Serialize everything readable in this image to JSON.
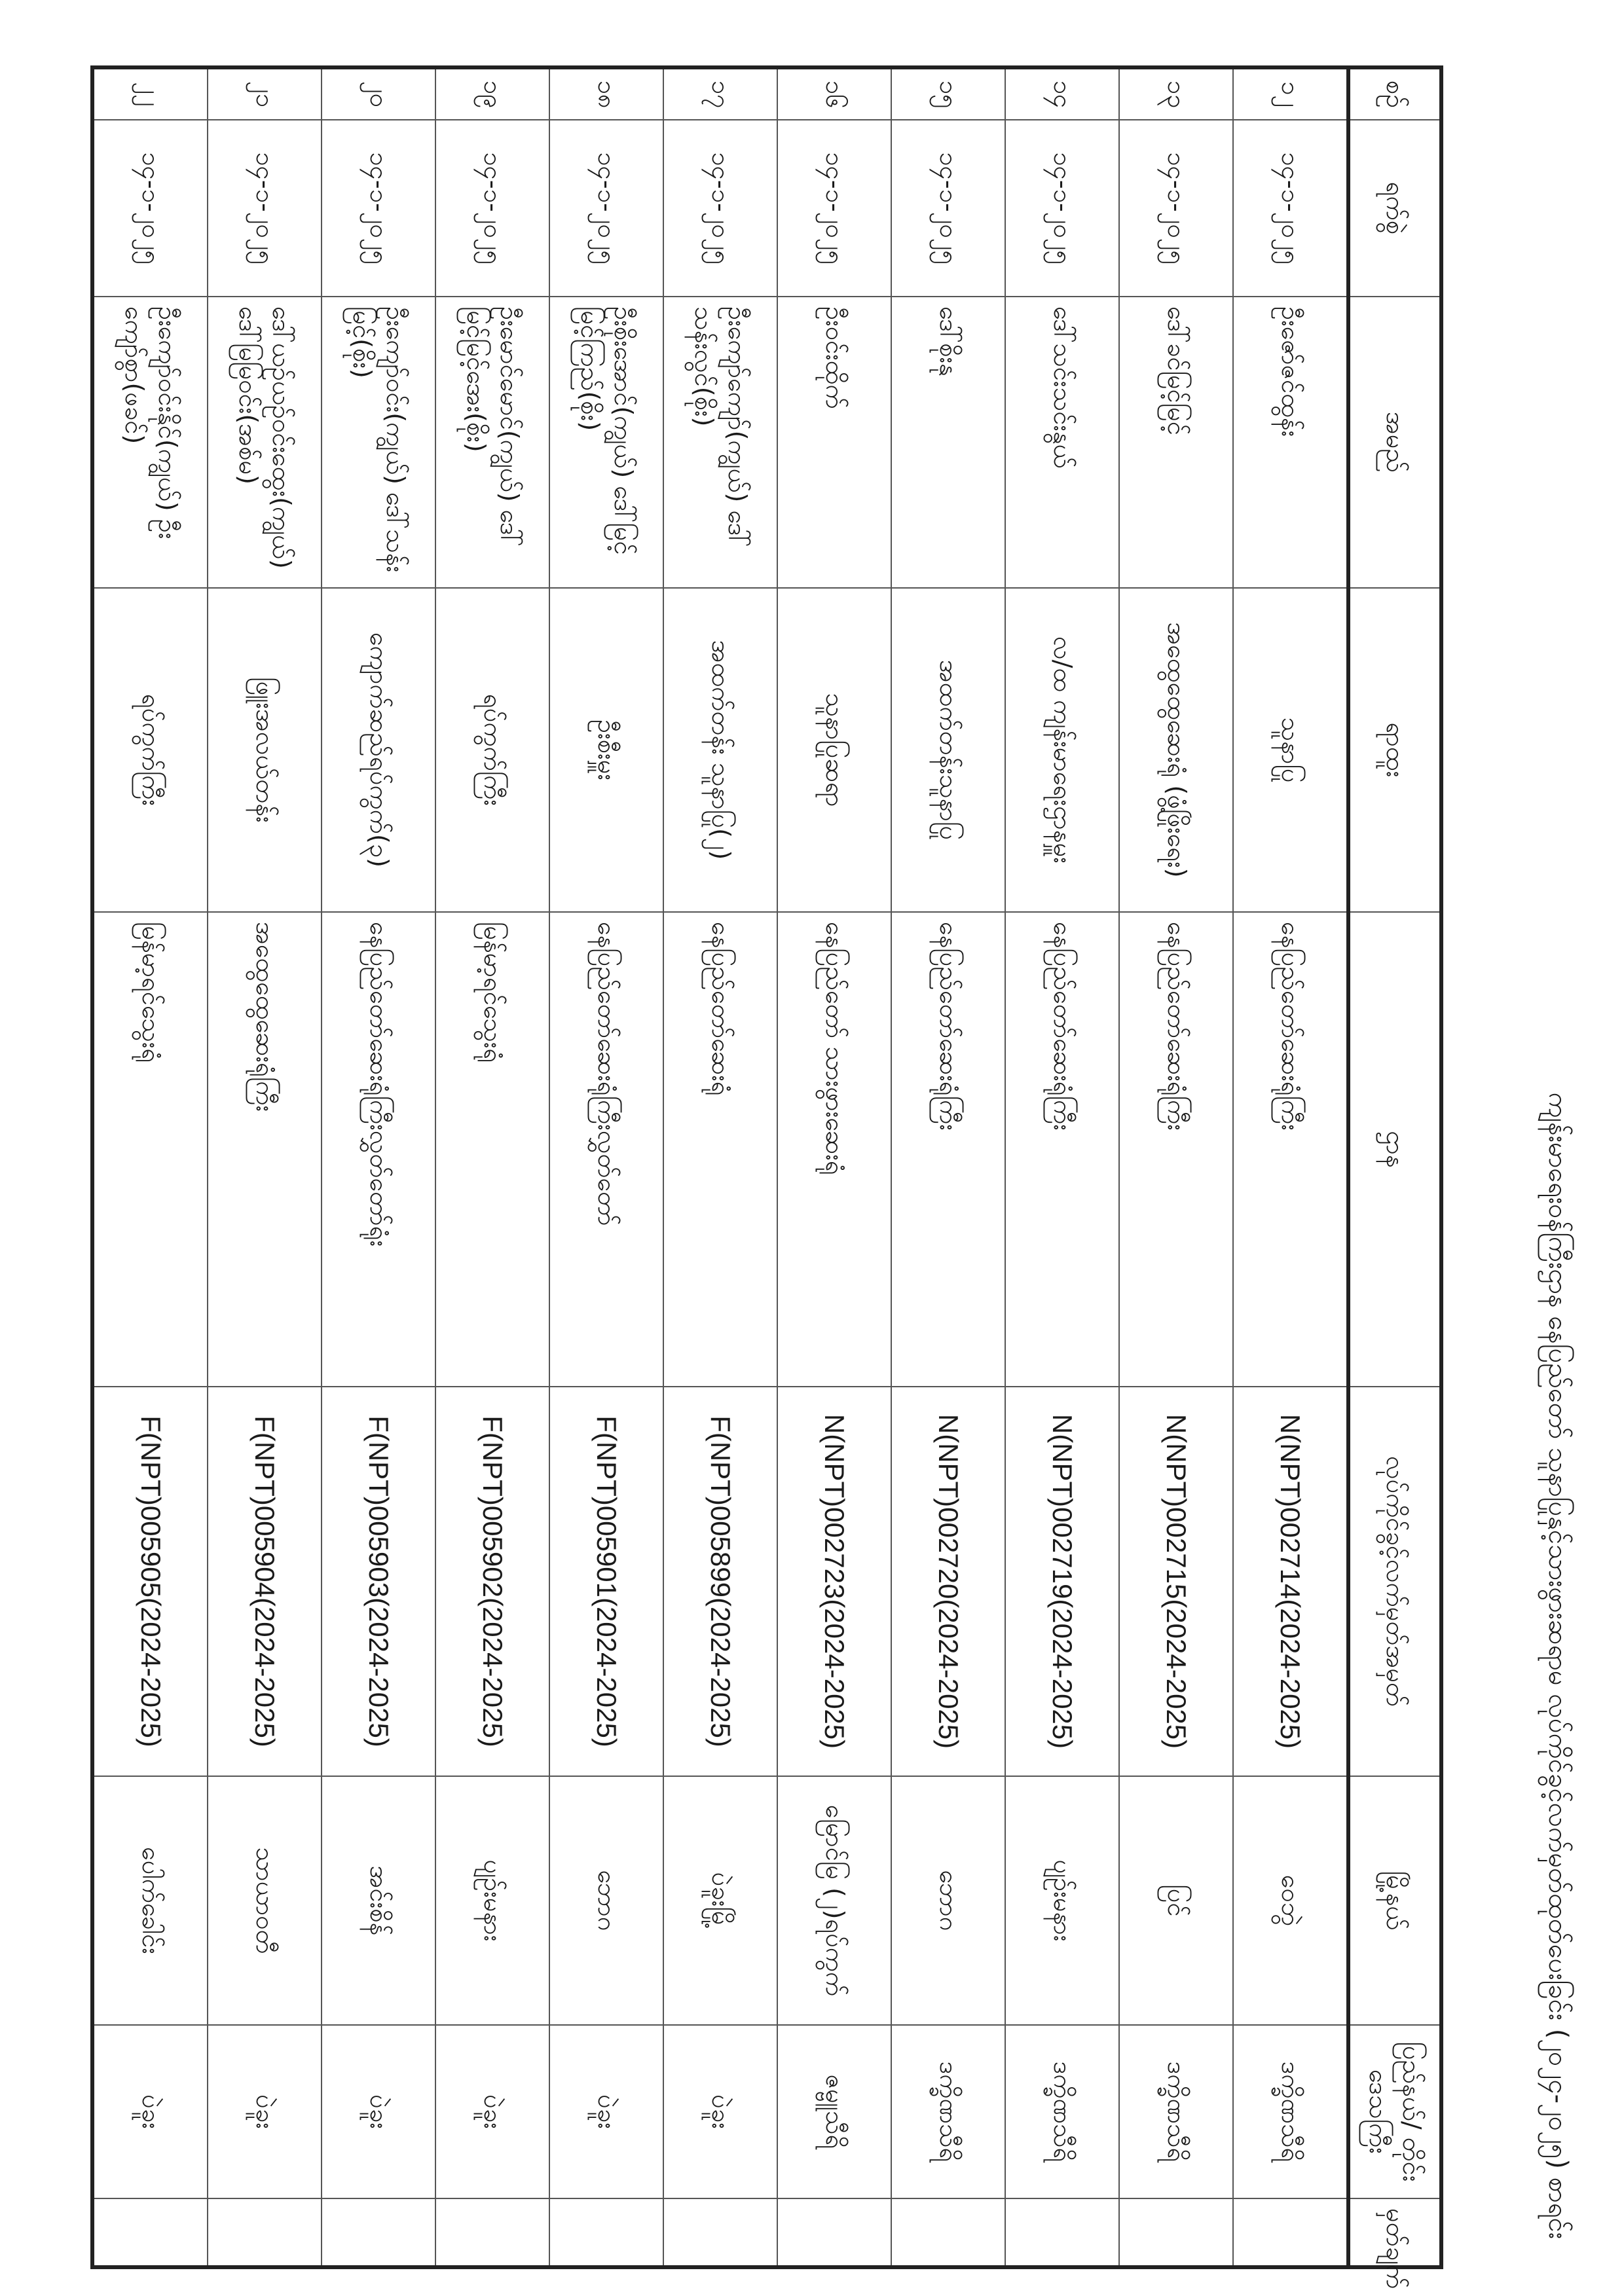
{
  "title": "ကျန်းမာရေးဝန်ကြီးဌာန နေပြည်တော် သူနာပြုနှင့်သားဖွားဆရာမ လုပ်ကိုင်ခွင့်လက်မှတ်ထုတ်ပေးခြင်း (၂၀၂၄-၂၀၂၅) စာရင်း",
  "headers": [
    "စဉ်",
    "ရက်စွဲ",
    "အမည်",
    "ရာထူး",
    "ဌာန",
    "လုပ်ကိုင်ခွင့်လက်မှတ်အမှတ်",
    "မြို့နယ်",
    "ပြည်နယ်/ တိုင်းဒေသကြီး",
    "မှတ်ချက်"
  ],
  "rows": [
    {
      "no": "၁၂",
      "date": "၁၄-၁-၂၀၂၅",
      "name": "ဦးဇော်ဇင်ထွန်း",
      "position": "သူနာပြု",
      "dept": "နေပြည်တော်ဆေးရုံကြီး",
      "license": "N(NPT)002714(2024-2025)",
      "township": "ဝေဘွဲ",
      "region": "ဒက္ခိဏသီရိ",
      "remark": ""
    },
    {
      "no": "၁၃",
      "date": "၁၄-၁-၂၀၂၅",
      "name": "ဒေါ်ခင်မြင့်မြင့်",
      "position": "အထွေထွေဆေးရုံ (ဖွံ့ဖြိုးရေး)",
      "dept": "နေပြည်တော်ဆေးရုံကြီး",
      "license": "N(NPT)002715(2024-2025)",
      "township": "ပြင်",
      "region": "ဒက္ခိဏသီရိ",
      "remark": ""
    },
    {
      "no": "၁၄",
      "date": "၁၄-၁-၂၀၂၅",
      "name": "ဒေါ်သင်းသင်းနွယ်",
      "position": "လ/ထ ကျန်းမာရေးဌာနမှူး",
      "dept": "နေပြည်တော်ဆေးရုံကြီး",
      "license": "N(NPT)002719(2024-2025)",
      "township": "ပျဉ်းမနား",
      "region": "ဒက္ခိဏသီရိ",
      "remark": ""
    },
    {
      "no": "၁၅",
      "date": "၁၄-၁-၂၀၂၅",
      "name": "ဒေါ်စိုးနု",
      "position": "အထက်တန်းသူနာပြု",
      "dept": "နေပြည်တော်ဆေးရုံကြီး",
      "license": "N(NPT)002720(2024-2025)",
      "township": "ဘောဂ",
      "region": "ဒက္ခိဏသီရိ",
      "remark": ""
    },
    {
      "no": "၁၆",
      "date": "၁၄-၁-၂၀၂၅",
      "name": "ဦးဝင်းထိုက်",
      "position": "သူနာပြုဆရာ",
      "dept": "နေပြည်တော် သားဖွားဆေးရုံ",
      "license": "N(NPT)002723(2024-2025)",
      "township": "မြောင်မြ (၂)ရပ်ကွက်",
      "region": "ဇမ္ဗူသီရိ",
      "remark": ""
    },
    {
      "no": "၁၇",
      "date": "၁၄-၁-၂၀၂၅",
      "name": "ဦးကျော်ကျော်(ကျွယ်) ဒေါ်သန်းလွင်(စိုး)",
      "position": "အထက်တန်း သူနာပြု(၂)",
      "dept": "နေပြည်တော်ဆေးရုံ",
      "license": "F(NPT)005899(2024-2025)",
      "township": "ပဲခူးမြို့",
      "region": "ပဲခူး",
      "remark": ""
    },
    {
      "no": "၁၈",
      "date": "၁၄-၁-၂၀၂၅",
      "name": "ဦးစိုးအောင်(ကျွယ်) ဒေါ်မြင့်မြင့်ကြည်(စိုး)",
      "position": "ဦးစီးမှူး",
      "dept": "နေပြည်တော်ဆေးရုံကြီးလွှတ်တော်",
      "license": "F(NPT)005901(2024-2025)",
      "township": "ဘောဂ",
      "region": "ပဲခူး",
      "remark": ""
    },
    {
      "no": "၁၉",
      "date": "၁၄-၁-၂၀၂၅",
      "name": "ဦးမောင်မောင်(ကျွယ်) ဒေါ်မြင့်မြင့်အေး(စိုး)",
      "position": "ရပ်ကွက်ကြီး",
      "dept": "မြန်မာ့ရင်သွေးရုံ",
      "license": "F(NPT)005902(2024-2025)",
      "township": "ပျဉ်းမနား",
      "region": "ပဲခူး",
      "remark": ""
    },
    {
      "no": "၂၀",
      "date": "၁၄-၁-၂၀၂၅",
      "name": "ဦးကျော်ဝင်း(ကျွယ်) ဒေါ်သန်းမြင့်(စိုး)",
      "position": "ကျောက်ဆည်ရပ်ကွက်(၃)",
      "dept": "နေပြည်တော်ဆေးရုံကြီးလွှတ်တော်ရုံး",
      "license": "F(NPT)005903(2024-2025)",
      "township": "အင်းစိန်",
      "region": "ပဲခူး",
      "remark": ""
    },
    {
      "no": "၂၁",
      "date": "၁၄-၁-၂၀၂၅",
      "name": "ဒေါ်ယဉ်ယဉ်ဝင်းထွေး(ကျွယ်) ဒေါ်မြမြဝင်း(အစ်မ)",
      "position": "ဖြူးအလယ်တန်း",
      "dept": "အထွေထွေဆေးရုံကြီး",
      "license": "F(NPT)005904(2024-2025)",
      "township": "သာယာဝတီ",
      "region": "ပဲခူး",
      "remark": ""
    },
    {
      "no": "၂၂",
      "date": "၁၄-၁-၂၀၂၅",
      "name": "ဦးကျော်ဝင်းနိုင်(ကျွယ်) ဦးကျော်စွာ(ဖခင်)",
      "position": "ရပ်ကွက်ကြီး",
      "dept": "မြန်မာ့ရင်သွေးရုံ",
      "license": "F(NPT)005905(2024-2025)",
      "township": "ပေါက်ခေါင်း",
      "region": "ပဲခူး",
      "remark": ""
    }
  ]
}
